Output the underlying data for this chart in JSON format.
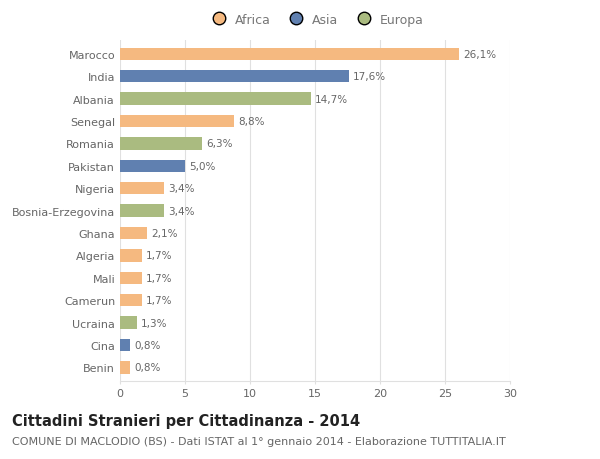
{
  "categories": [
    "Marocco",
    "India",
    "Albania",
    "Senegal",
    "Romania",
    "Pakistan",
    "Nigeria",
    "Bosnia-Erzegovina",
    "Ghana",
    "Algeria",
    "Mali",
    "Camerun",
    "Ucraina",
    "Cina",
    "Benin"
  ],
  "values": [
    26.1,
    17.6,
    14.7,
    8.8,
    6.3,
    5.0,
    3.4,
    3.4,
    2.1,
    1.7,
    1.7,
    1.7,
    1.3,
    0.8,
    0.8
  ],
  "labels": [
    "26,1%",
    "17,6%",
    "14,7%",
    "8,8%",
    "6,3%",
    "5,0%",
    "3,4%",
    "3,4%",
    "2,1%",
    "1,7%",
    "1,7%",
    "1,7%",
    "1,3%",
    "0,8%",
    "0,8%"
  ],
  "continents": [
    "Africa",
    "Asia",
    "Europa",
    "Africa",
    "Europa",
    "Asia",
    "Africa",
    "Europa",
    "Africa",
    "Africa",
    "Africa",
    "Africa",
    "Europa",
    "Asia",
    "Africa"
  ],
  "colors": {
    "Africa": "#F5B980",
    "Asia": "#6080B0",
    "Europa": "#AABB80"
  },
  "xlim": [
    0,
    30
  ],
  "xticks": [
    0,
    5,
    10,
    15,
    20,
    25,
    30
  ],
  "background_color": "#ffffff",
  "grid_color": "#e0e0e0",
  "title": "Cittadini Stranieri per Cittadinanza - 2014",
  "subtitle": "COMUNE DI MACLODIO (BS) - Dati ISTAT al 1° gennaio 2014 - Elaborazione TUTTITALIA.IT",
  "title_fontsize": 10.5,
  "subtitle_fontsize": 8,
  "label_fontsize": 7.5,
  "tick_fontsize": 8,
  "legend_fontsize": 9
}
